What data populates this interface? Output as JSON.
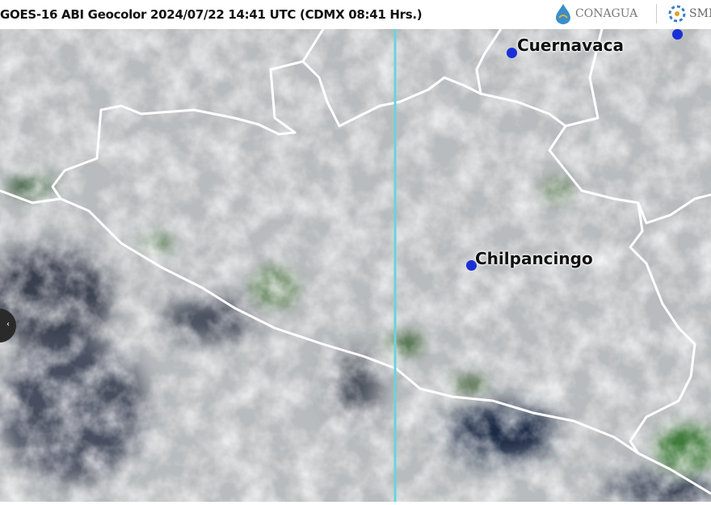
{
  "header": {
    "title": "GOES-16 ABI Geocolor 2024/07/22 14:41 UTC (CDMX  08:41 Hrs.)",
    "logos": [
      {
        "name": "CONAGUA",
        "text": "CONAGUA"
      },
      {
        "name": "SMN",
        "text": "SMN"
      }
    ]
  },
  "map": {
    "cities": [
      {
        "name": "Cuernavaca",
        "marker_color": "#1a2fd6"
      },
      {
        "name": "Chilpancingo",
        "marker_color": "#1a2fd6"
      }
    ],
    "border_color": "#ffffff",
    "meridian_color": "#66d6dc"
  },
  "nav": {
    "prev_icon": "chevron-left-icon"
  }
}
